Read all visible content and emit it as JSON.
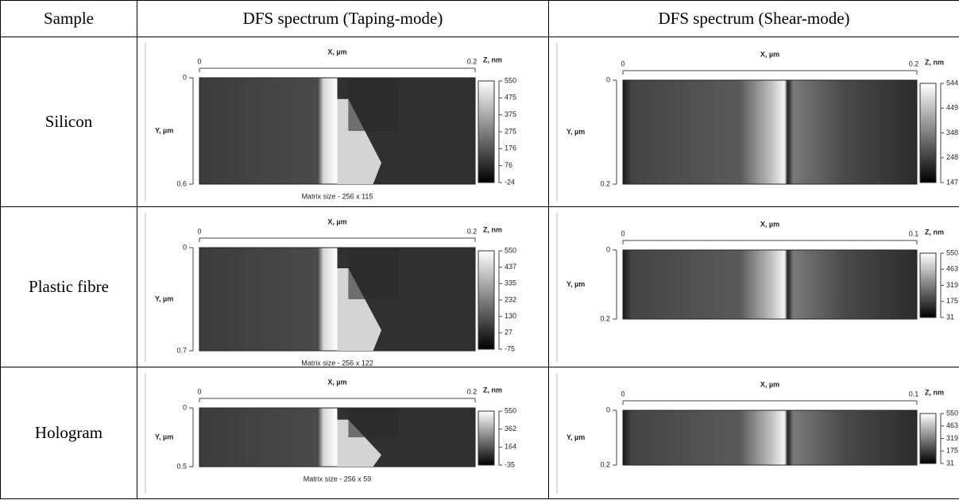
{
  "table": {
    "headers": [
      "Sample",
      "DFS spectrum (Taping-mode)",
      "DFS spectrum (Shear-mode)"
    ],
    "rows": [
      {
        "sample": "Silicon",
        "tapping": {
          "x_label": "X, µm",
          "x_start": 0,
          "x_end": 0.2,
          "y_label": "Y, µm",
          "y_start": 0,
          "y_end": 0.6,
          "z_label": "Z, nm",
          "z_ticks": [
            550,
            475,
            375,
            275,
            176,
            76,
            -24
          ],
          "matrix": "Matrix size - 256 x 115"
        },
        "shear": {
          "x_label": "X, µm",
          "x_start": 0,
          "x_end": 0.2,
          "y_label": "Y, µm",
          "y_start": 0,
          "y_end": 0.2,
          "z_label": "Z, nm",
          "z_ticks": [
            544,
            449,
            348,
            248,
            147
          ]
        }
      },
      {
        "sample": "Plastic fibre",
        "tapping": {
          "x_label": "X, µm",
          "x_start": 0,
          "x_end": 0.2,
          "y_label": "Y, µm",
          "y_start": 0,
          "y_end": 0.7,
          "z_label": "Z, nm",
          "z_ticks": [
            550,
            437,
            335,
            232,
            130,
            27,
            -75
          ],
          "matrix": "Matrix size - 256 x 122"
        },
        "shear": {
          "x_label": "X, µm",
          "x_start": 0,
          "x_end": 0.1,
          "y_label": "Y, µm",
          "y_start": 0,
          "y_end": 0.2,
          "z_label": "Z, nm",
          "z_ticks": [
            550,
            463,
            319,
            175,
            31
          ]
        }
      },
      {
        "sample": "Hologram",
        "tapping": {
          "x_label": "X, µm",
          "x_start": 0,
          "x_end": 0.2,
          "y_label": "Y, µm",
          "y_start": 0,
          "y_end": 0.5,
          "z_label": "Z, nm",
          "z_ticks": [
            550,
            362,
            164,
            -35
          ],
          "matrix": "Matrix size - 256 x 59"
        },
        "shear": {
          "x_label": "X, µm",
          "x_start": 0,
          "x_end": 0.1,
          "y_label": "Y, µm",
          "y_start": 0,
          "y_end": 0.2,
          "z_label": "Z, nm",
          "z_ticks": [
            550,
            463,
            319,
            175,
            31
          ]
        }
      }
    ]
  }
}
